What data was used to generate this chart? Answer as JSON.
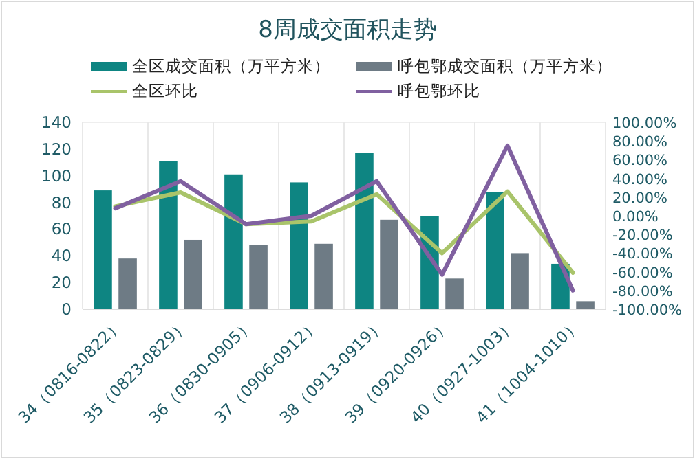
{
  "chart_data": {
    "type": "bar",
    "title": "8周成交面积走势",
    "categories": [
      "34（0816-0822）",
      "35（0823-0829）",
      "36（0830-0905）",
      "37（0906-0912）",
      "38（0913-0919）",
      "39（0920-0926）",
      "40（0927-1003）",
      "41（1004-1010）"
    ],
    "series": [
      {
        "name": "全区成交面积（万平方米）",
        "color": "#0e8582",
        "values": [
          89,
          111,
          101,
          95,
          117,
          70,
          88,
          34
        ]
      },
      {
        "name": "呼包鄂成交面积（万平方米）",
        "color": "#6e7b85",
        "values": [
          38,
          52,
          48,
          49,
          67,
          23,
          42,
          6
        ]
      },
      {
        "name": "全区环比",
        "type": "line",
        "axis": "y2",
        "color": "#a9c46a",
        "values": [
          10,
          25,
          -9,
          -6,
          23,
          -40,
          26,
          -61
        ]
      },
      {
        "name": "呼包鄂环比",
        "type": "line",
        "axis": "y2",
        "color": "#8060a0",
        "values": [
          8,
          37,
          -9,
          0,
          37,
          -63,
          75,
          -80
        ]
      }
    ],
    "ylim": [
      0,
      140
    ],
    "yticks": [
      0,
      20,
      40,
      60,
      80,
      100,
      120,
      140
    ],
    "y2lim": [
      -100,
      100
    ],
    "y2ticks": [
      {
        "value": 100,
        "label": "100.00%"
      },
      {
        "value": 80,
        "label": "80.00%"
      },
      {
        "value": 60,
        "label": "60.00%"
      },
      {
        "value": 40,
        "label": "40.00%"
      },
      {
        "value": 20,
        "label": "20.00%"
      },
      {
        "value": 0,
        "label": "0.00%"
      },
      {
        "value": -20,
        "label": "-20.00%"
      },
      {
        "value": -40,
        "label": "-40.00%"
      },
      {
        "value": -60,
        "label": "-60.00%"
      },
      {
        "value": -80,
        "label": "-80.00%"
      },
      {
        "value": -100,
        "label": "-100.00%"
      }
    ],
    "legend": "top",
    "grid": "x"
  }
}
